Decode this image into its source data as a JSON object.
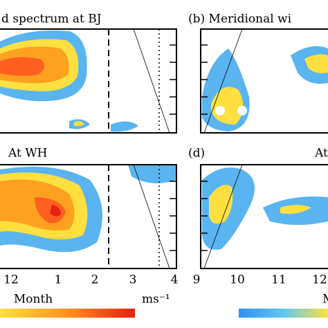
{
  "panels": [
    {
      "title": "d spectrum at BJ"
    },
    {
      "title": "(b) Meridional wi"
    },
    {
      "title": "At WH"
    },
    {
      "title": "(d)",
      "title_right": "At"
    }
  ],
  "x_ticks_left": [
    "12",
    "1",
    "2",
    "3",
    "4"
  ],
  "x_ticks_right": [
    "9",
    "10",
    "11",
    "12"
  ],
  "x_label_left": "Month",
  "x_label_right": "M",
  "colorbar_unit": "ms⁻¹"
}
